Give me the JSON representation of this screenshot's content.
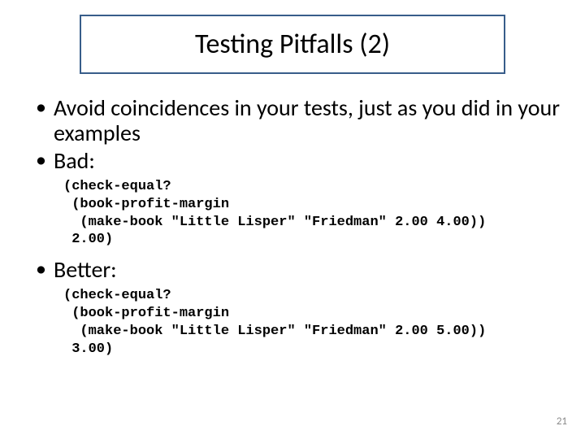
{
  "slide": {
    "title": "Testing Pitfalls (2)",
    "title_border_color": "#385d8a",
    "title_fontsize": 34,
    "bullets": {
      "b1": "Avoid coincidences in your tests, just as you did in your examples",
      "b2": "Bad:",
      "b3": "Better:"
    },
    "code_bad": "(check-equal?\n (book-profit-margin\n  (make-book \"Little Lisper\" \"Friedman\" 2.00 4.00))\n 2.00)",
    "code_better": "(check-equal?\n (book-profit-margin\n  (make-book \"Little Lisper\" \"Friedman\" 2.00 5.00))\n 3.00)",
    "body_fontsize": 28,
    "code_fontsize": 17,
    "code_font": "Courier New",
    "page_number": "21",
    "background_color": "#ffffff",
    "text_color": "#000000",
    "pagenum_color": "#8a8a8a"
  }
}
